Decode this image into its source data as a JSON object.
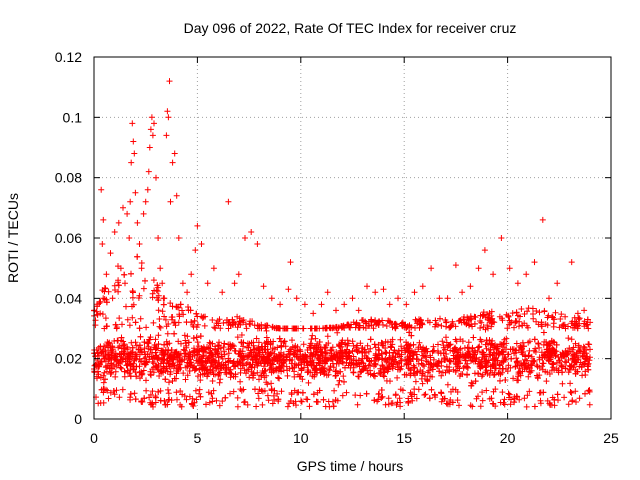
{
  "chart_data": {
    "type": "scatter",
    "title": "Day 096 of 2022, Rate Of TEC Index for receiver cruz",
    "xlabel": "GPS time / hours",
    "ylabel": "ROTI / TECUs",
    "xlim": [
      0,
      25
    ],
    "ylim": [
      0,
      0.12
    ],
    "xticks": [
      0,
      5,
      10,
      15,
      20,
      25
    ],
    "xtick_labels": [
      "0",
      "5",
      "10",
      "15",
      "20",
      "25"
    ],
    "yticks": [
      0,
      0.02,
      0.04,
      0.06,
      0.08,
      0.1,
      0.12
    ],
    "ytick_labels": [
      "0",
      "0.02",
      "0.04",
      "0.06",
      "0.08",
      "0.1",
      "0.12"
    ],
    "grid": true,
    "marker": "+",
    "color": "#ff0000",
    "series": [
      {
        "name": "ROTI",
        "points": [
          [
            0.1,
            0.018
          ],
          [
            0.2,
            0.022
          ],
          [
            0.3,
            0.035
          ],
          [
            0.35,
            0.076
          ],
          [
            0.4,
            0.058
          ],
          [
            0.45,
            0.066
          ],
          [
            0.5,
            0.03
          ],
          [
            0.6,
            0.048
          ],
          [
            0.7,
            0.025
          ],
          [
            0.8,
            0.055
          ],
          [
            0.9,
            0.04
          ],
          [
            1.0,
            0.062
          ],
          [
            1.1,
            0.03
          ],
          [
            1.2,
            0.065
          ],
          [
            1.3,
            0.05
          ],
          [
            1.4,
            0.07
          ],
          [
            1.5,
            0.045
          ],
          [
            1.6,
            0.068
          ],
          [
            1.7,
            0.06
          ],
          [
            1.75,
            0.072
          ],
          [
            1.8,
            0.085
          ],
          [
            1.85,
            0.098
          ],
          [
            1.9,
            0.092
          ],
          [
            1.95,
            0.088
          ],
          [
            2.0,
            0.075
          ],
          [
            2.1,
            0.065
          ],
          [
            2.2,
            0.058
          ],
          [
            2.3,
            0.05
          ],
          [
            2.4,
            0.068
          ],
          [
            2.5,
            0.072
          ],
          [
            2.6,
            0.076
          ],
          [
            2.65,
            0.082
          ],
          [
            2.7,
            0.09
          ],
          [
            2.75,
            0.096
          ],
          [
            2.8,
            0.1
          ],
          [
            2.85,
            0.094
          ],
          [
            2.9,
            0.098
          ],
          [
            3.0,
            0.08
          ],
          [
            3.1,
            0.06
          ],
          [
            3.2,
            0.05
          ],
          [
            3.3,
            0.045
          ],
          [
            3.4,
            0.04
          ],
          [
            3.5,
            0.094
          ],
          [
            3.55,
            0.102
          ],
          [
            3.6,
            0.1
          ],
          [
            3.65,
            0.112
          ],
          [
            3.7,
            0.072
          ],
          [
            3.8,
            0.085
          ],
          [
            3.9,
            0.088
          ],
          [
            4.0,
            0.074
          ],
          [
            4.1,
            0.06
          ],
          [
            4.3,
            0.045
          ],
          [
            4.5,
            0.042
          ],
          [
            4.7,
            0.048
          ],
          [
            4.9,
            0.056
          ],
          [
            5.0,
            0.064
          ],
          [
            5.2,
            0.058
          ],
          [
            5.5,
            0.045
          ],
          [
            5.8,
            0.05
          ],
          [
            6.2,
            0.042
          ],
          [
            6.5,
            0.072
          ],
          [
            6.8,
            0.045
          ],
          [
            7.0,
            0.048
          ],
          [
            7.3,
            0.06
          ],
          [
            7.6,
            0.062
          ],
          [
            7.9,
            0.058
          ],
          [
            8.2,
            0.044
          ],
          [
            8.6,
            0.04
          ],
          [
            9.0,
            0.038
          ],
          [
            9.4,
            0.043
          ],
          [
            9.5,
            0.052
          ],
          [
            9.8,
            0.04
          ],
          [
            10.2,
            0.038
          ],
          [
            10.6,
            0.035
          ],
          [
            11.0,
            0.038
          ],
          [
            11.3,
            0.042
          ],
          [
            11.7,
            0.036
          ],
          [
            12.1,
            0.038
          ],
          [
            12.5,
            0.04
          ],
          [
            12.8,
            0.036
          ],
          [
            13.2,
            0.044
          ],
          [
            13.6,
            0.042
          ],
          [
            14.0,
            0.043
          ],
          [
            14.3,
            0.038
          ],
          [
            14.7,
            0.04
          ],
          [
            15.1,
            0.038
          ],
          [
            15.5,
            0.042
          ],
          [
            15.9,
            0.044
          ],
          [
            16.3,
            0.05
          ],
          [
            16.7,
            0.04
          ],
          [
            17.1,
            0.04
          ],
          [
            17.5,
            0.051
          ],
          [
            17.8,
            0.042
          ],
          [
            18.2,
            0.044
          ],
          [
            18.6,
            0.05
          ],
          [
            18.9,
            0.056
          ],
          [
            19.3,
            0.048
          ],
          [
            19.7,
            0.06
          ],
          [
            20.1,
            0.05
          ],
          [
            20.5,
            0.045
          ],
          [
            20.9,
            0.048
          ],
          [
            21.3,
            0.052
          ],
          [
            21.7,
            0.066
          ],
          [
            22.0,
            0.04
          ],
          [
            22.4,
            0.045
          ],
          [
            22.8,
            0.03
          ],
          [
            23.1,
            0.052
          ],
          [
            23.4,
            0.035
          ],
          [
            23.7,
            0.036
          ],
          [
            23.9,
            0.03
          ]
        ]
      }
    ],
    "dense_band": {
      "note": "dense cloud of ROTI values from 0 to 24 h",
      "x_range": [
        0,
        24
      ],
      "y_core_range": [
        0.01,
        0.03
      ],
      "y_min": 0.004,
      "y_upper_envelope": [
        [
          0,
          0.04
        ],
        [
          1,
          0.05
        ],
        [
          2,
          0.055
        ],
        [
          3,
          0.045
        ],
        [
          4,
          0.04
        ],
        [
          5,
          0.035
        ],
        [
          6,
          0.033
        ],
        [
          7,
          0.034
        ],
        [
          8,
          0.032
        ],
        [
          9,
          0.03
        ],
        [
          10,
          0.03
        ],
        [
          11,
          0.03
        ],
        [
          12,
          0.031
        ],
        [
          13,
          0.033
        ],
        [
          14,
          0.033
        ],
        [
          15,
          0.032
        ],
        [
          16,
          0.034
        ],
        [
          17,
          0.033
        ],
        [
          18,
          0.034
        ],
        [
          19,
          0.036
        ],
        [
          20,
          0.036
        ],
        [
          21,
          0.037
        ],
        [
          22,
          0.036
        ],
        [
          23,
          0.034
        ],
        [
          24,
          0.033
        ]
      ]
    }
  }
}
